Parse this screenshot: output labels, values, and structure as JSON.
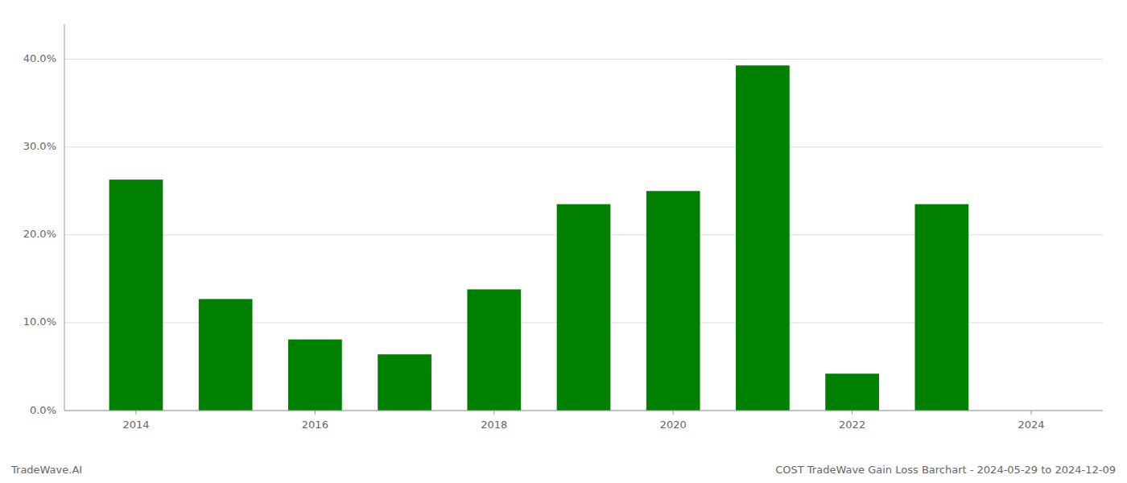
{
  "chart_data": {
    "type": "bar",
    "x": [
      2014,
      2015,
      2016,
      2017,
      2018,
      2019,
      2020,
      2021,
      2022,
      2023
    ],
    "values": [
      0.263,
      0.127,
      0.081,
      0.064,
      0.138,
      0.235,
      0.25,
      0.393,
      0.042,
      0.235
    ],
    "color": "#008000",
    "ylim": [
      0,
      0.44
    ],
    "yticks": [
      {
        "value": 0.0,
        "label": "0.0%"
      },
      {
        "value": 0.1,
        "label": "10.0%"
      },
      {
        "value": 0.2,
        "label": "20.0%"
      },
      {
        "value": 0.3,
        "label": "30.0%"
      },
      {
        "value": 0.4,
        "label": "40.0%"
      }
    ],
    "xlim": [
      2013.2,
      2024.8
    ],
    "xticks": [
      2014,
      2016,
      2018,
      2020,
      2022,
      2024
    ],
    "grid": true,
    "annotations": [
      "TradeWave.AI",
      "COST TradeWave Gain Loss Barchart - 2024-05-29 to 2024-12-09"
    ]
  }
}
